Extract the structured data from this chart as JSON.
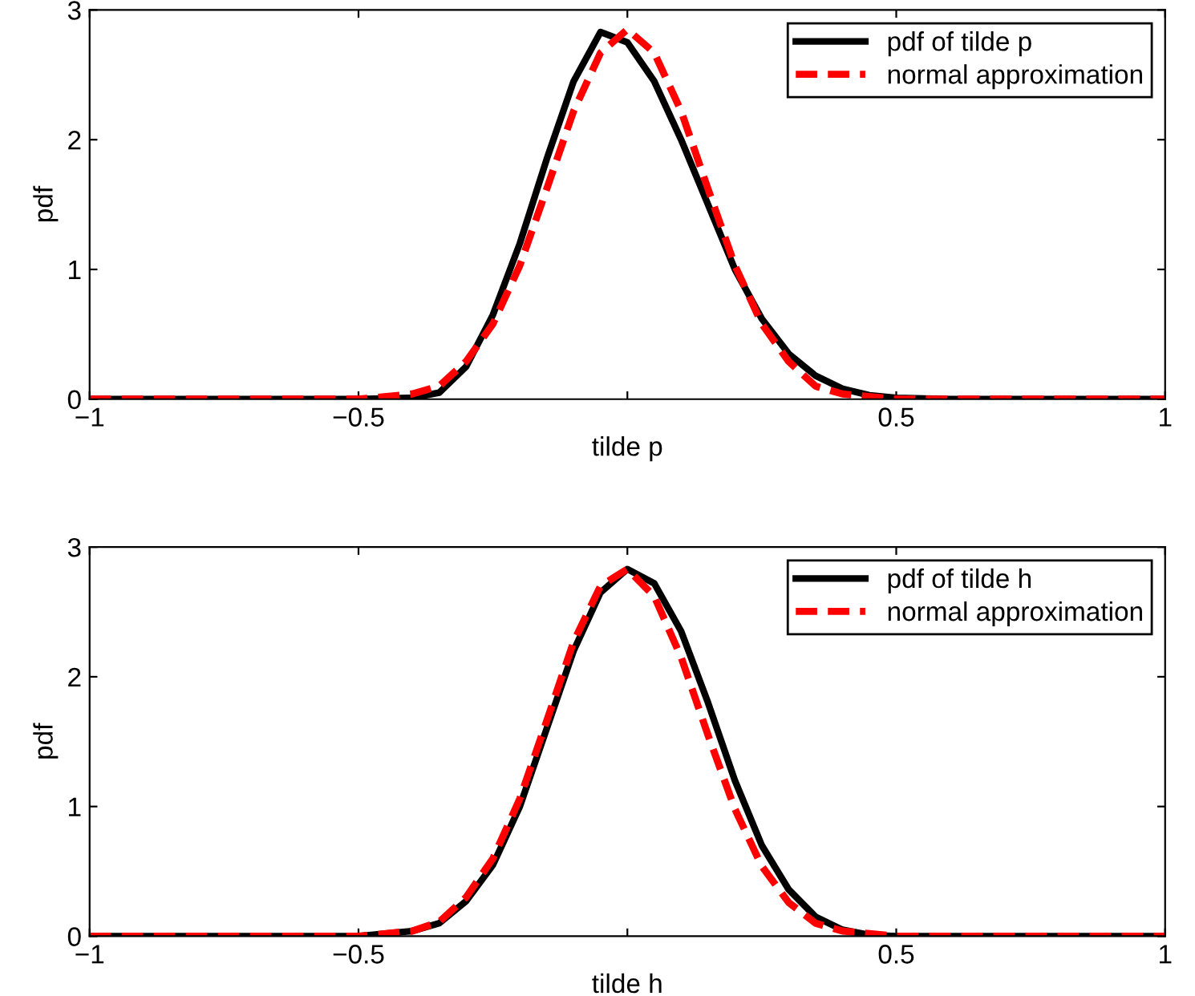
{
  "chart_data": [
    {
      "type": "line",
      "xlabel": "tilde p",
      "ylabel": "pdf",
      "xlim": [
        -1,
        1
      ],
      "ylim": [
        0,
        3
      ],
      "xticks": [
        {
          "value": -1,
          "label": "−1"
        },
        {
          "value": -0.5,
          "label": "−0.5"
        },
        {
          "value": 0,
          "label": null
        },
        0.5,
        1
      ],
      "yticks": [
        0,
        1,
        2,
        3
      ],
      "grid": false,
      "legend": "top right",
      "series": [
        {
          "name": "pdf of tilde p",
          "color": "#000000",
          "line_style": "solid",
          "x": [
            -1,
            -0.5,
            -0.4,
            -0.35,
            -0.3,
            -0.25,
            -0.2,
            -0.15,
            -0.1,
            -0.05,
            0,
            0.05,
            0.1,
            0.15,
            0.2,
            0.25,
            0.3,
            0.35,
            0.4,
            0.45,
            0.5,
            0.6,
            1
          ],
          "values": [
            0,
            0,
            0.01,
            0.05,
            0.25,
            0.65,
            1.2,
            1.85,
            2.45,
            2.83,
            2.75,
            2.45,
            2.0,
            1.5,
            1.0,
            0.62,
            0.35,
            0.18,
            0.08,
            0.03,
            0.01,
            0,
            0
          ]
        },
        {
          "name": "normal approximation",
          "color": "#ff0000",
          "line_style": "dashed",
          "x": [
            -1,
            -0.5,
            -0.4,
            -0.35,
            -0.3,
            -0.25,
            -0.2,
            -0.15,
            -0.1,
            -0.05,
            0,
            0.05,
            0.1,
            0.15,
            0.2,
            0.25,
            0.3,
            0.35,
            0.4,
            0.5,
            1
          ],
          "values": [
            0,
            0,
            0.04,
            0.1,
            0.29,
            0.58,
            1.03,
            1.62,
            2.22,
            2.67,
            2.85,
            2.67,
            2.22,
            1.62,
            1.03,
            0.58,
            0.29,
            0.1,
            0.04,
            0,
            0
          ]
        }
      ]
    },
    {
      "type": "line",
      "xlabel": "tilde h",
      "ylabel": "pdf",
      "xlim": [
        -1,
        1
      ],
      "ylim": [
        0,
        3
      ],
      "xticks": [
        {
          "value": -1,
          "label": "−1"
        },
        {
          "value": -0.5,
          "label": "−0.5"
        },
        {
          "value": 0,
          "label": null
        },
        0.5,
        1
      ],
      "yticks": [
        0,
        1,
        2,
        3
      ],
      "grid": false,
      "legend": "top right",
      "series": [
        {
          "name": "pdf of tilde h",
          "color": "#000000",
          "line_style": "solid",
          "x": [
            -1,
            -0.5,
            -0.4,
            -0.35,
            -0.3,
            -0.25,
            -0.2,
            -0.15,
            -0.1,
            -0.05,
            0,
            0.05,
            0.1,
            0.15,
            0.2,
            0.25,
            0.3,
            0.35,
            0.4,
            0.45,
            0.5,
            1
          ],
          "values": [
            0,
            0,
            0.04,
            0.1,
            0.27,
            0.55,
            1.0,
            1.6,
            2.2,
            2.65,
            2.83,
            2.72,
            2.35,
            1.8,
            1.2,
            0.7,
            0.36,
            0.15,
            0.05,
            0.01,
            0,
            0
          ]
        },
        {
          "name": "normal approximation",
          "color": "#ff0000",
          "line_style": "dashed",
          "x": [
            -1,
            -0.5,
            -0.4,
            -0.35,
            -0.3,
            -0.25,
            -0.2,
            -0.15,
            -0.1,
            -0.05,
            0,
            0.05,
            0.1,
            0.15,
            0.2,
            0.25,
            0.3,
            0.35,
            0.4,
            0.5,
            1
          ],
          "values": [
            0,
            0,
            0.04,
            0.11,
            0.3,
            0.6,
            1.06,
            1.66,
            2.27,
            2.7,
            2.83,
            2.62,
            2.15,
            1.55,
            0.98,
            0.54,
            0.26,
            0.1,
            0.04,
            0,
            0
          ]
        }
      ]
    }
  ]
}
